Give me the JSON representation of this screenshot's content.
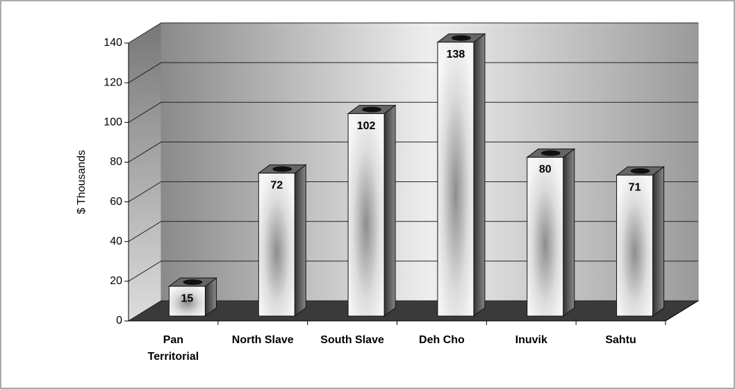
{
  "chart_data": {
    "type": "bar3d",
    "y_label": "$ Thousands",
    "categories": [
      "Pan Territorial",
      "North Slave",
      "South Slave",
      "Deh Cho",
      "Inuvik",
      "Sahtu"
    ],
    "values": [
      15,
      72,
      102,
      138,
      80,
      71
    ],
    "ylim": [
      0,
      140
    ],
    "yticks": [
      0,
      20,
      40,
      60,
      80,
      100,
      120,
      140
    ],
    "grid": true,
    "color": "#e8e8e8"
  }
}
